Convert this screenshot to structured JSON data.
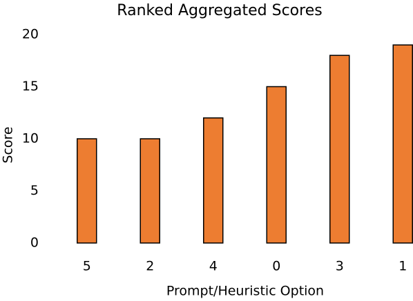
{
  "chart_data": {
    "type": "bar",
    "title": "Ranked Aggregated Scores",
    "x_label": "Prompt/Heuristic Option",
    "y_label": "Score",
    "categories": [
      "5",
      "2",
      "4",
      "0",
      "3",
      "1"
    ],
    "values": [
      10,
      10,
      12,
      15,
      18,
      19
    ],
    "color": "#ed7d31",
    "ylim": [
      0,
      20
    ],
    "yticks": [
      0,
      5,
      10,
      15,
      20
    ],
    "grid": false
  }
}
